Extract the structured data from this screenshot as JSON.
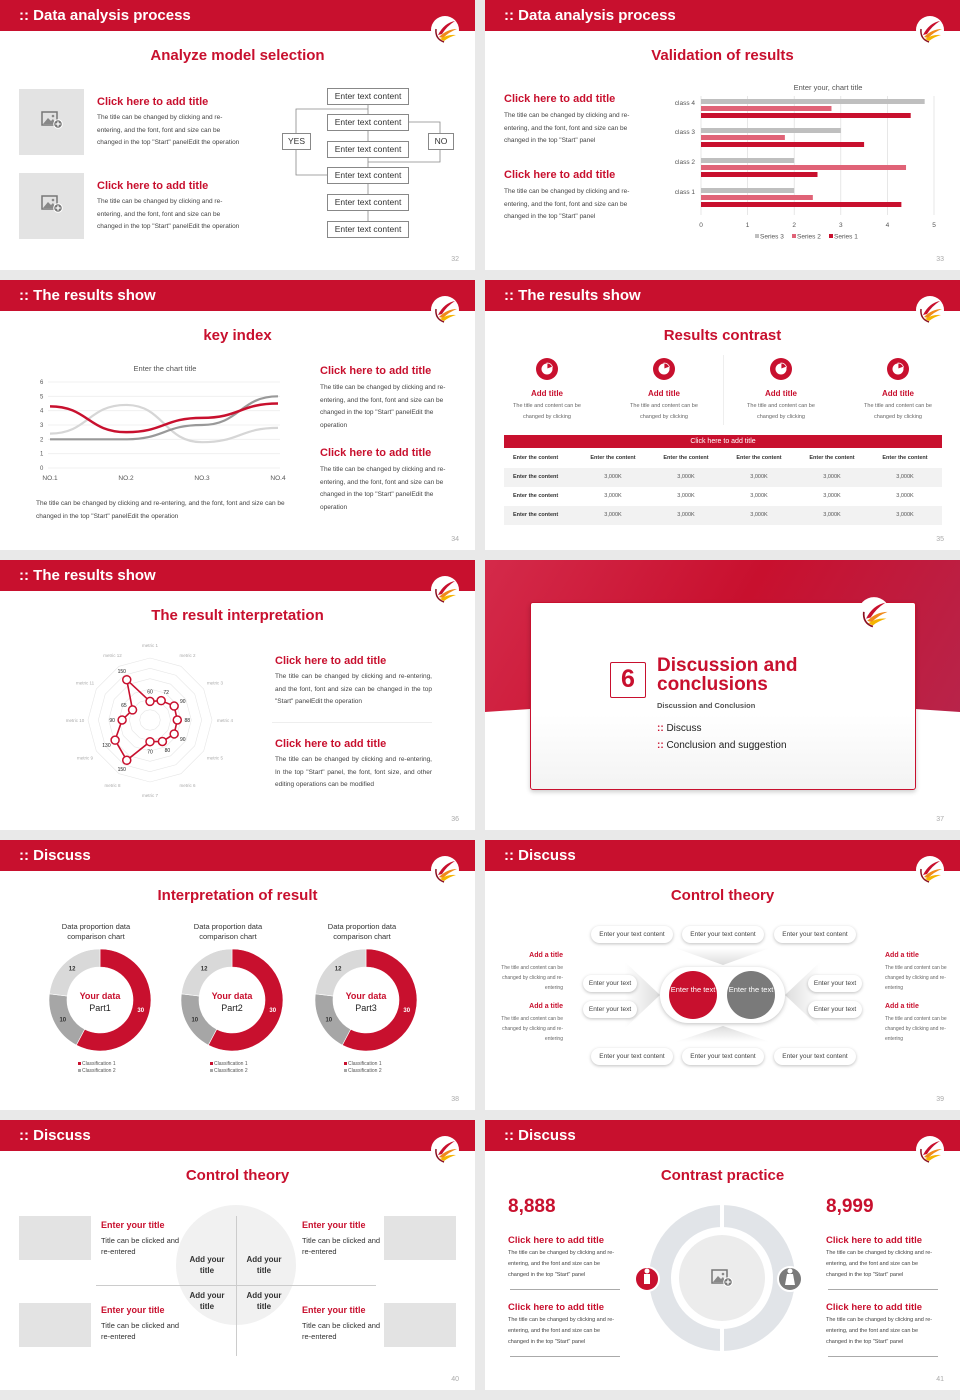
{
  "colors": {
    "accent": "#c8102e",
    "pink": "#e06377",
    "gray": "#bfbfbf",
    "dark_gray": "#8c8c8c"
  },
  "icons": {
    "image_placeholder": "image-plus-icon",
    "logo": "swoosh-logo",
    "pie": "pie-chart-icon",
    "male": "male-icon",
    "female": "female-icon"
  },
  "slides": [
    {
      "header": "Data analysis process",
      "subtitle": "Analyze model selection",
      "page": "32",
      "items": [
        {
          "title": "Click here to add title",
          "body": "The title can be changed by clicking and re-entering, and the font, font and size can be changed in the top \"Start\" panelEdit the operation"
        },
        {
          "title": "Click here to add title",
          "body": "The title can be changed by clicking and re-entering, and the font, font and size can be changed in the top \"Start\" panelEdit the operation"
        }
      ],
      "flow": [
        "Enter text content",
        "Enter text content",
        "Enter text content",
        "Enter text content",
        "Enter text content",
        "Enter text content"
      ],
      "yes": "YES",
      "no": "NO"
    },
    {
      "header": "Data analysis process",
      "subtitle": "Validation of results",
      "page": "33",
      "items": [
        {
          "title": "Click here to add title",
          "body": "The title can be changed by clicking and re-entering, and the font, font and size can be changed in the top \"Start\" panel"
        },
        {
          "title": "Click here to add title",
          "body": "The title can be changed by clicking and re-entering, and the font, font and size can be changed in the top \"Start\" panel"
        }
      ]
    },
    {
      "header": "The results show",
      "subtitle": "key index",
      "page": "34",
      "caption": "The title can be changed by clicking and re-entering, and the font, font and size can be changed in the top \"Start\" panelEdit the operation",
      "items": [
        {
          "title": "Click here to add title",
          "body": "The title can be changed by clicking and re-entering, and the font, font and size can be changed in the top \"Start\" panelEdit the operation"
        },
        {
          "title": "Click here to add title",
          "body": "The title can be changed by clicking and re-entering, and the font, font and size can be changed in the top \"Start\" panelEdit the operation"
        }
      ]
    },
    {
      "header": "The results show",
      "subtitle": "Results contrast",
      "page": "35",
      "cards": [
        {
          "title": "Add title",
          "body": "The title and content can be changed by clicking"
        },
        {
          "title": "Add title",
          "body": "The title and content can be changed by clicking"
        },
        {
          "title": "Add title",
          "body": "The title and content can be changed by clicking"
        },
        {
          "title": "Add title",
          "body": "The title and content can be changed by clicking"
        }
      ],
      "table_title": "Click here to add title",
      "table": {
        "headers": [
          "Enter the content",
          "Enter the content",
          "Enter the content",
          "Enter the content",
          "Enter the content",
          "Enter the content"
        ],
        "rows": [
          [
            "Enter the content",
            "3,000K",
            "3,000K",
            "3,000K",
            "3,000K",
            "3,000K"
          ],
          [
            "Enter the content",
            "3,000K",
            "3,000K",
            "3,000K",
            "3,000K",
            "3,000K"
          ],
          [
            "Enter the content",
            "3,000K",
            "3,000K",
            "3,000K",
            "3,000K",
            "3,000K"
          ]
        ]
      }
    },
    {
      "header": "The results show",
      "subtitle": "The result interpretation",
      "page": "36",
      "items": [
        {
          "title": "Click here to add title",
          "body": "The title can be changed by clicking and re-entering, and the font, font and size can be changed in the top \"Start\" panelEdit the operation"
        },
        {
          "title": "Click here to add title",
          "body": "The title can be changed by clicking and re-entering, In the top \"Start\" panel, the font, font size, and other editing operations can be modified"
        }
      ]
    },
    {
      "number": "6",
      "title_line1": "Discussion and",
      "title_line2": "conclusions",
      "subtitle": "Discussion and Conclusion",
      "bullets": [
        "Discuss",
        "Conclusion and suggestion"
      ],
      "page": "37"
    },
    {
      "header": "Discuss",
      "subtitle": "Interpretation of result",
      "page": "38"
    },
    {
      "header": "Discuss",
      "subtitle": "Control theory",
      "page": "39",
      "top_pills": [
        "Enter your text content",
        "Enter your text content",
        "Enter your text content"
      ],
      "bottom_pills": [
        "Enter your text content",
        "Enter your text content",
        "Enter your text content"
      ],
      "left_pills": [
        "Enter your text",
        "Enter your text"
      ],
      "right_pills": [
        "Enter your text",
        "Enter your text"
      ],
      "center_red": "Enter the text",
      "center_gray": "Enter the text",
      "side_items": [
        {
          "title": "Add a title",
          "body": "The title and content can be changed by clicking and re-entering"
        },
        {
          "title": "Add a title",
          "body": "The title and content can be changed by clicking and re-entering"
        },
        {
          "title": "Add a title",
          "body": "The title and content can be changed by clicking and re-entering"
        },
        {
          "title": "Add a title",
          "body": "The title and content can be changed by clicking and re-entering"
        }
      ]
    },
    {
      "header": "Discuss",
      "subtitle": "Control theory",
      "page": "40",
      "items": [
        {
          "title": "Enter your title",
          "body": "Title can be clicked and re-entered"
        },
        {
          "title": "Enter your title",
          "body": "Title can be clicked and re-entered"
        },
        {
          "title": "Enter your title",
          "body": "Title can be clicked and re-entered"
        },
        {
          "title": "Enter your title",
          "body": "Title can be clicked and re-entered"
        }
      ],
      "quadrants": [
        "Add your title",
        "Add your title",
        "Add your title",
        "Add your title"
      ]
    },
    {
      "header": "Discuss",
      "subtitle": "Contrast practice",
      "page": "41",
      "stat_left": "8,888",
      "stat_right": "8,999",
      "items": [
        {
          "title": "Click here to add title",
          "body": "The title can be changed by clicking and re-entering, and the font and size can be changed in the top \"Start\" panel"
        },
        {
          "title": "Click here to add title",
          "body": "The title can be changed by clicking and re-entering, and the font and size can be changed in the top \"Start\" panel"
        },
        {
          "title": "Click here to add title",
          "body": "The title can be changed by clicking and re-entering, and the font and size can be changed in the top \"Start\" panel"
        },
        {
          "title": "Click here to add title",
          "body": "The title can be changed by clicking and re-entering, and the font and size can be changed in the top \"Start\" panel"
        }
      ]
    }
  ],
  "chart_data": [
    {
      "type": "bar",
      "orientation": "horizontal",
      "title": "Enter your, chart title",
      "categories": [
        "class 1",
        "class 2",
        "class 3",
        "class 4"
      ],
      "series": [
        {
          "name": "Series 1",
          "values": [
            4.3,
            2.5,
            3.5,
            4.5
          ],
          "color": "#c8102e"
        },
        {
          "name": "Series 2",
          "values": [
            2.4,
            4.4,
            1.8,
            2.8
          ],
          "color": "#e06377"
        },
        {
          "name": "Series 3",
          "values": [
            2,
            2,
            3,
            4.8
          ],
          "color": "#bfbfbf"
        }
      ],
      "xlim": [
        0,
        5
      ],
      "ticks": [
        "0",
        "1",
        "2",
        "3",
        "4",
        "5"
      ],
      "legend": [
        "Series 3",
        "Series 2",
        "Series 1"
      ],
      "legend_position": "bottom",
      "grid": true
    },
    {
      "type": "line",
      "smooth": true,
      "title": "Enter the chart title",
      "categories": [
        "NO.1",
        "NO.2",
        "NO.3",
        "NO.4"
      ],
      "series": [
        {
          "values": [
            4.3,
            2.5,
            3.5,
            4.5
          ],
          "color": "#c8102e"
        },
        {
          "values": [
            2.0,
            2.0,
            3.0,
            5.0
          ],
          "color": "#999999"
        },
        {
          "values": [
            2.4,
            4.4,
            1.8,
            2.8
          ],
          "color": "#d6d6d6"
        }
      ],
      "ylim": [
        0,
        6
      ],
      "yticks": [
        "0",
        "1",
        "2",
        "3",
        "4",
        "5",
        "6"
      ],
      "grid": true
    },
    {
      "type": "radar",
      "axes": [
        "metric 1",
        "metric 2",
        "metric 3",
        "metric 4",
        "metric 5",
        "metric 6",
        "metric 7",
        "metric 8",
        "metric 9",
        "metric 10",
        "metric 11",
        "metric 12"
      ],
      "values": [
        60,
        72,
        90,
        88,
        90,
        80,
        70,
        150,
        130,
        90,
        65,
        150
      ],
      "rmax": 200
    },
    {
      "type": "pie",
      "donut": true,
      "charts": [
        {
          "title": "Data proportion data comparison chart",
          "center_line1": "Your data",
          "center_line2": "Part1",
          "values": [
            30,
            10,
            12
          ],
          "colors": [
            "#c8102e",
            "#a6a6a6",
            "#d9d9d9"
          ],
          "legend": [
            "Classification 1",
            "Classification 2"
          ]
        },
        {
          "title": "Data proportion data comparison chart",
          "center_line1": "Your data",
          "center_line2": "Part2",
          "values": [
            30,
            10,
            12
          ],
          "colors": [
            "#c8102e",
            "#a6a6a6",
            "#d9d9d9"
          ],
          "legend": [
            "Classification 1",
            "Classification 2"
          ]
        },
        {
          "title": "Data proportion data comparison chart",
          "center_line1": "Your data",
          "center_line2": "Part3",
          "values": [
            30,
            10,
            12
          ],
          "colors": [
            "#c8102e",
            "#a6a6a6",
            "#d9d9d9"
          ],
          "legend": [
            "Classification 1",
            "Classification 2"
          ]
        }
      ]
    }
  ]
}
